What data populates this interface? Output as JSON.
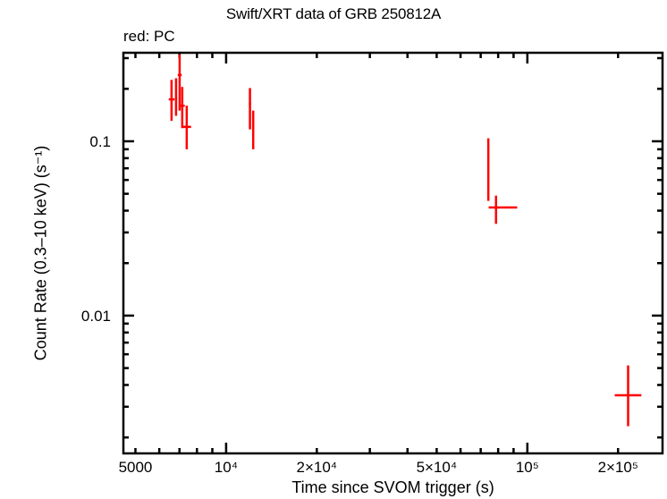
{
  "chart_data": {
    "type": "scatter",
    "title": "Swift/XRT data of GRB 250812A",
    "subtitle": "red: PC",
    "xlabel": "Time since SVOM trigger (s)",
    "ylabel": "Count Rate (0.3–10 keV) (s⁻¹)",
    "xscale": "log",
    "yscale": "log",
    "xlim": [
      4560,
      281000
    ],
    "ylim": [
      0.00162,
      0.322
    ],
    "grid": false,
    "legend": "none",
    "x_ticks": [
      {
        "value": 5000,
        "label": "5000"
      },
      {
        "value": 10000,
        "label": "10⁴"
      },
      {
        "value": 20000,
        "label": "2×10⁴"
      },
      {
        "value": 50000,
        "label": "5×10⁴"
      },
      {
        "value": 100000,
        "label": "10⁵"
      },
      {
        "value": 200000,
        "label": "2×10⁵"
      }
    ],
    "y_ticks": [
      {
        "value": 0.1,
        "label": "0.1"
      },
      {
        "value": 0.01,
        "label": "0.01"
      }
    ],
    "series": [
      {
        "name": "PC",
        "color": "#ff0000",
        "points": [
          {
            "x": 6590,
            "xlo": 6450,
            "xhi": 6740,
            "y": 0.174,
            "ylo": 0.131,
            "yhi": 0.225
          },
          {
            "x": 6820,
            "xlo": 6770,
            "xhi": 6880,
            "y": 0.176,
            "ylo": 0.14,
            "yhi": 0.23
          },
          {
            "x": 7010,
            "xlo": 6910,
            "xhi": 7120,
            "y": 0.24,
            "ylo": 0.15,
            "yhi": 0.315
          },
          {
            "x": 7150,
            "xlo": 7010,
            "xhi": 7290,
            "y": 0.16,
            "ylo": 0.119,
            "yhi": 0.205
          },
          {
            "x": 7400,
            "xlo": 7150,
            "xhi": 7650,
            "y": 0.121,
            "ylo": 0.09,
            "yhi": 0.16
          },
          {
            "x": 12000,
            "xlo": 11900,
            "xhi": 12100,
            "y": 0.164,
            "ylo": 0.117,
            "yhi": 0.202
          },
          {
            "x": 12300,
            "xlo": 12200,
            "xhi": 12400,
            "y": 0.124,
            "ylo": 0.09,
            "yhi": 0.15
          },
          {
            "x": 74200,
            "xlo": 74000,
            "xhi": 74400,
            "y": 0.07,
            "ylo": 0.0455,
            "yhi": 0.104
          },
          {
            "x": 78700,
            "xlo": 74400,
            "xhi": 92500,
            "y": 0.0417,
            "ylo": 0.0336,
            "yhi": 0.0488
          },
          {
            "x": 216000,
            "xlo": 195000,
            "xhi": 239000,
            "y": 0.00349,
            "ylo": 0.00232,
            "yhi": 0.00518
          }
        ]
      }
    ]
  }
}
